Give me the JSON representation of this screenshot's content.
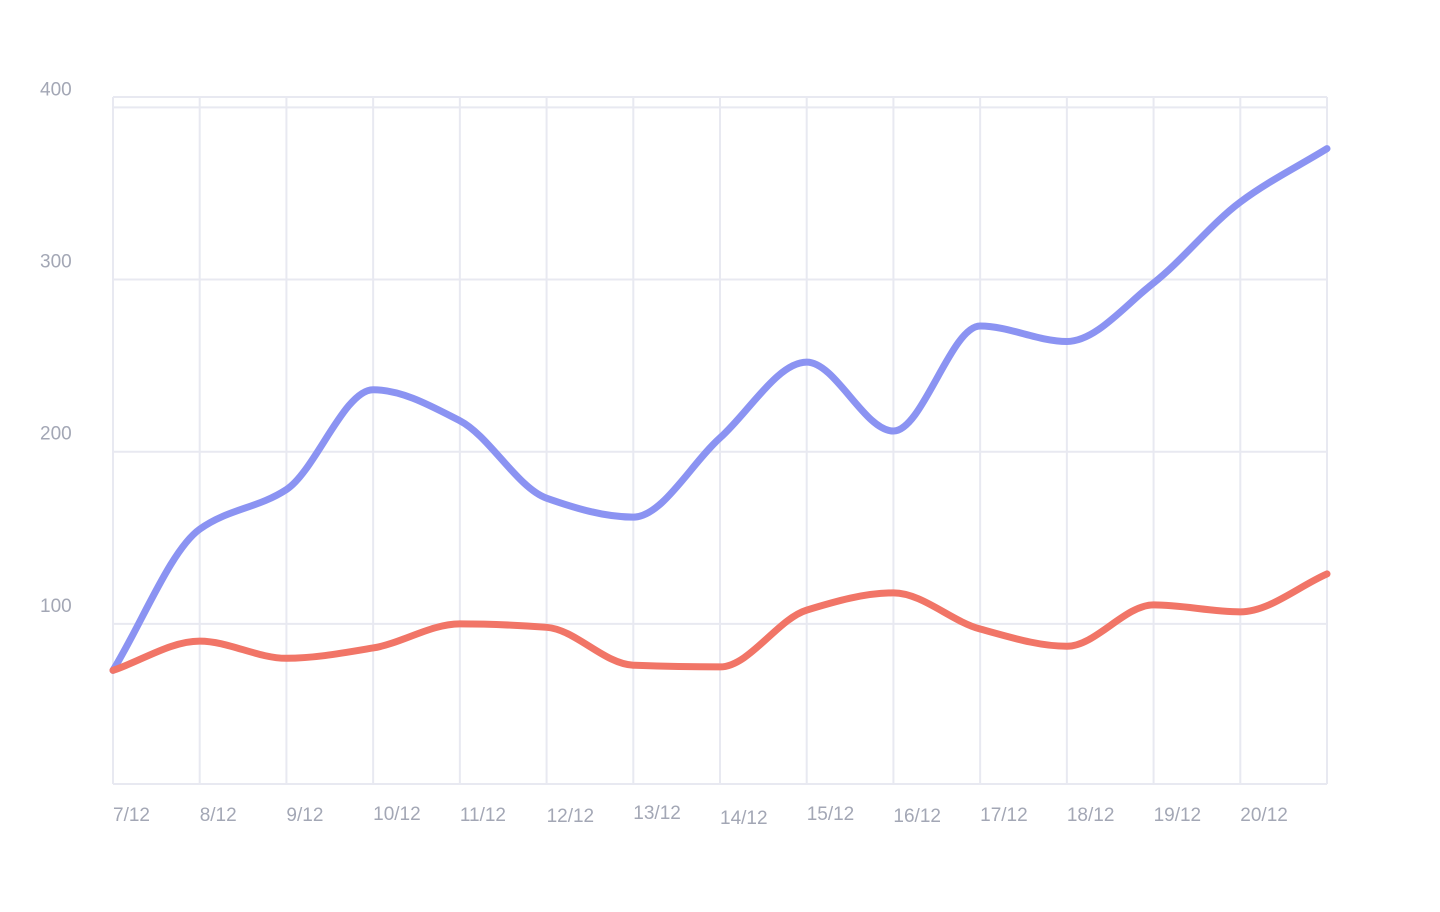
{
  "chart_data": {
    "type": "line",
    "x": [
      "7/12",
      "8/12",
      "9/12",
      "10/12",
      "11/12",
      "12/12",
      "13/12",
      "14/12",
      "15/12",
      "16/12",
      "17/12",
      "18/12",
      "19/12",
      "20/12",
      ""
    ],
    "series": [
      {
        "color": "#8b93f2",
        "values": [
          73,
          155,
          178,
          236,
          218,
          173,
          162,
          208,
          252,
          212,
          273,
          264,
          298,
          345,
          376
        ]
      },
      {
        "color": "#f17567",
        "values": [
          73,
          90,
          80,
          86,
          100,
          98,
          76,
          75,
          108,
          118,
          97,
          87,
          111,
          107,
          129
        ]
      }
    ],
    "y_ticks": [
      100,
      200,
      300,
      400
    ],
    "ylim": [
      7,
      406
    ],
    "grid": true,
    "legend": "none"
  }
}
